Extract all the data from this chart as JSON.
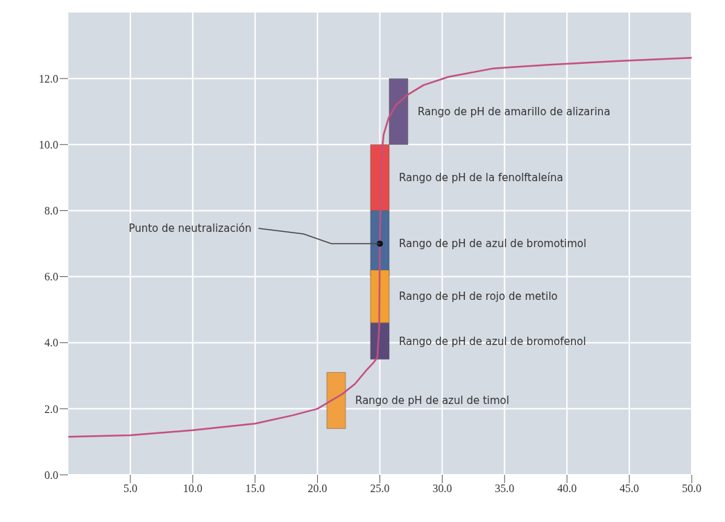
{
  "chart_data": {
    "type": "line",
    "xlim": [
      0,
      50
    ],
    "ylim": [
      0,
      14
    ],
    "xticks": [
      {
        "value": 5,
        "label": "5.0"
      },
      {
        "value": 10,
        "label": "10.0"
      },
      {
        "value": 15,
        "label": "15.0"
      },
      {
        "value": 20,
        "label": "20.0"
      },
      {
        "value": 25,
        "label": "25.0"
      },
      {
        "value": 30,
        "label": "30.0"
      },
      {
        "value": 35,
        "label": "35.0"
      },
      {
        "value": 40,
        "label": "40.0"
      },
      {
        "value": 45,
        "label": "45.0"
      },
      {
        "value": 50,
        "label": "50.0"
      }
    ],
    "yticks": [
      {
        "value": 0,
        "label": "0.0"
      },
      {
        "value": 2,
        "label": "2.0"
      },
      {
        "value": 4,
        "label": "4.0"
      },
      {
        "value": 6,
        "label": "6.0"
      },
      {
        "value": 8,
        "label": "8.0"
      },
      {
        "value": 10,
        "label": "10.0"
      },
      {
        "value": 12,
        "label": "12.0"
      }
    ],
    "grid": true,
    "series": [
      {
        "color": "#c4507e",
        "x": [
          0,
          5,
          10,
          15,
          18,
          20,
          22,
          23,
          24,
          24.5,
          24.8,
          24.95,
          25,
          25.1,
          25.3,
          25.7,
          26.3,
          27.2,
          28.5,
          30.5,
          34,
          38.6,
          44,
          50
        ],
        "values": [
          1.15,
          1.2,
          1.35,
          1.55,
          1.8,
          2,
          2.45,
          2.75,
          3.2,
          3.4,
          3.55,
          4.5,
          7,
          9.5,
          10.3,
          10.8,
          11.2,
          11.5,
          11.8,
          12.05,
          12.3,
          12.42,
          12.53,
          12.63
        ]
      },
      {
        "type": "bar",
        "name": "Rango de pH de amarillo de alizarina",
        "color": "#6e5a8a",
        "x": [
          26.5
        ],
        "base": [
          10
        ],
        "values": [
          2
        ]
      },
      {
        "type": "bar",
        "name": "Rango de pH de la fenolftaleína",
        "color": "#e84a4a",
        "x": [
          25
        ],
        "base": [
          8
        ],
        "values": [
          2
        ]
      },
      {
        "type": "bar",
        "name": "Rango de pH de azul de bromotimol",
        "color": "#4a6a9a",
        "x": [
          25
        ],
        "base": [
          6
        ],
        "values": [
          2
        ]
      },
      {
        "type": "bar",
        "name": "Rango de pH de rojo de metilo",
        "color": "#f2a032",
        "x": [
          25
        ],
        "base": [
          4.6
        ],
        "values": [
          1.6
        ]
      },
      {
        "type": "bar",
        "name": "Rango de pH de azul de bromofenol",
        "color": "#5a4a7a",
        "x": [
          25
        ],
        "base": [
          3.5
        ],
        "values": [
          1.1
        ]
      },
      {
        "type": "bar",
        "name": "Rango de pH de azul de timol",
        "color": "#f0a040",
        "x": [
          21.5
        ],
        "base": [
          1.4
        ],
        "values": [
          1.7
        ]
      }
    ],
    "annotations": [
      {
        "text": "Punto de neutralización",
        "x": 25,
        "y": 7
      }
    ]
  }
}
